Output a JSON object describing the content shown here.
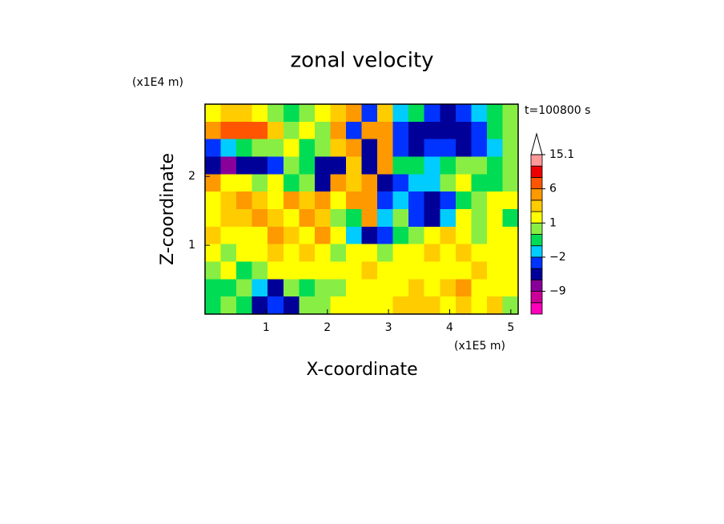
{
  "chart_data": {
    "type": "contour",
    "title": "zonal velocity",
    "x_label": "X-coordinate",
    "y_label": "Z-coordinate",
    "x_unit": "(x1E5 m)",
    "y_unit": "(x1E4 m)",
    "time_label": "t=100800 s",
    "xlim": [
      0,
      5.12
    ],
    "ylim": [
      0,
      3.05
    ],
    "xticks": [
      1,
      2,
      3,
      4,
      5
    ],
    "yticks": [
      1,
      2
    ],
    "levels": [
      -15,
      -12,
      -9,
      -6,
      -3,
      -2,
      -1,
      0,
      1,
      2,
      3,
      6,
      9,
      12,
      15.1
    ],
    "colors": [
      "#ff00bb",
      "#cc0099",
      "#880099",
      "#000099",
      "#0033ff",
      "#00ccff",
      "#00dd55",
      "#88ee44",
      "#ffff00",
      "#ffcc00",
      "#ff9900",
      "#ff5500",
      "#ee0000",
      "#ff9999"
    ],
    "cbar_ticks": [
      15.1,
      6,
      1,
      {
        "value": -2,
        "label": "−2"
      },
      {
        "value": -9,
        "label": "−9"
      }
    ],
    "z": [
      [
        1,
        2,
        2,
        1,
        0,
        -1,
        0,
        1,
        2,
        3,
        -3,
        2,
        -2,
        -1,
        -3,
        -4,
        -3,
        -2,
        -1,
        0
      ],
      [
        4,
        6,
        6,
        6,
        2,
        0,
        1,
        0,
        3,
        -3,
        4,
        5,
        -3,
        -6,
        -6,
        -5,
        -5,
        -3,
        -1,
        0
      ],
      [
        -3,
        -2,
        -1,
        0,
        0,
        1,
        -1,
        0,
        2,
        4,
        -4,
        3,
        -3,
        -6,
        -3,
        -3,
        -4,
        -3,
        -2,
        0
      ],
      [
        -6,
        -9,
        -6,
        -6,
        -3,
        0,
        -1,
        -4,
        -6,
        2,
        -4,
        3,
        -1,
        -1,
        -2,
        -1,
        0,
        0,
        -1,
        0
      ],
      [
        3,
        1,
        1,
        0,
        1,
        -1,
        0,
        -4,
        3,
        2,
        5,
        -6,
        -3,
        -2,
        -2,
        0,
        1,
        -1,
        -1,
        0
      ],
      [
        1,
        2,
        3,
        2,
        1,
        3,
        2,
        3,
        1,
        3,
        4,
        -3,
        -2,
        -3,
        -6,
        -3,
        -1,
        0,
        1,
        1
      ],
      [
        1,
        2,
        2,
        3,
        2,
        1,
        3,
        2,
        0,
        -1,
        3,
        -2,
        0,
        -3,
        -6,
        -2,
        1,
        0,
        1,
        -1
      ],
      [
        2,
        1,
        1,
        1,
        3,
        2,
        1,
        3,
        1,
        -2,
        -6,
        -3,
        -1,
        0,
        1,
        2,
        1,
        0,
        1,
        1
      ],
      [
        1,
        0,
        1,
        1,
        2,
        1,
        2,
        1,
        0,
        1,
        1,
        0,
        1,
        1,
        2,
        1,
        2,
        1,
        1,
        1
      ],
      [
        0,
        1,
        -1,
        0,
        1,
        1,
        1,
        1,
        1,
        1,
        2,
        1,
        1,
        1,
        1,
        1,
        1,
        2,
        1,
        1
      ],
      [
        -1,
        -1,
        0,
        -2,
        -6,
        0,
        -1,
        0,
        0,
        1,
        1,
        1,
        1,
        2,
        1,
        2,
        3,
        1,
        1,
        1
      ],
      [
        -1,
        0,
        -1,
        -6,
        -3,
        -6,
        0,
        0,
        1,
        1,
        1,
        1,
        2,
        2,
        2,
        1,
        2,
        1,
        2,
        0
      ]
    ]
  }
}
